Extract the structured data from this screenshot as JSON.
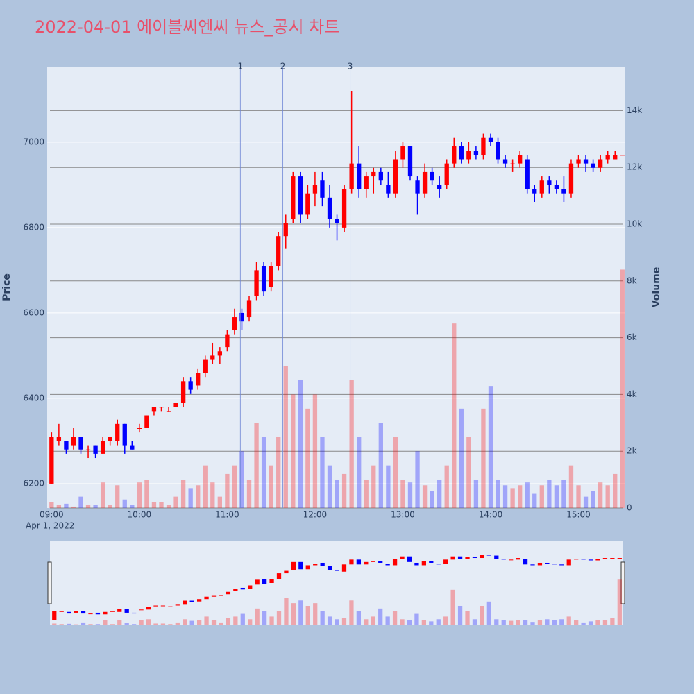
{
  "chart_data": {
    "type": "candlestick",
    "title": "2022-04-01 에이블씨엔씨 뉴스_공시 차트",
    "x_date_label": "Apr 1, 2022",
    "y_title": "Price",
    "y2_title": "Volume",
    "x": [
      "09:00",
      "09:05",
      "09:10",
      "09:15",
      "09:20",
      "09:25",
      "09:30",
      "09:35",
      "09:40",
      "09:45",
      "09:50",
      "09:55",
      "10:00",
      "10:05",
      "10:10",
      "10:15",
      "10:20",
      "10:25",
      "10:30",
      "10:35",
      "10:40",
      "10:45",
      "10:50",
      "10:55",
      "11:00",
      "11:05",
      "11:10",
      "11:15",
      "11:20",
      "11:25",
      "11:30",
      "11:35",
      "11:40",
      "11:45",
      "11:50",
      "11:55",
      "12:00",
      "12:05",
      "12:10",
      "12:15",
      "12:20",
      "12:25",
      "12:30",
      "12:35",
      "12:40",
      "12:45",
      "12:50",
      "12:55",
      "13:00",
      "13:05",
      "13:10",
      "13:15",
      "13:20",
      "13:25",
      "13:30",
      "13:35",
      "13:40",
      "13:45",
      "13:50",
      "13:55",
      "14:00",
      "14:05",
      "14:10",
      "14:15",
      "14:20",
      "14:25",
      "14:30",
      "14:35",
      "14:40",
      "14:45",
      "14:50",
      "14:55",
      "15:00",
      "15:05",
      "15:10",
      "15:15",
      "15:20",
      "15:25",
      "15:30"
    ],
    "open": [
      6200,
      6300,
      6300,
      6290,
      6310,
      6280,
      6290,
      6270,
      6300,
      6300,
      6340,
      6290,
      6330,
      6330,
      6370,
      6380,
      6370,
      6380,
      6390,
      6440,
      6430,
      6460,
      6490,
      6500,
      6520,
      6560,
      6600,
      6590,
      6640,
      6710,
      6660,
      6710,
      6780,
      6820,
      6920,
      6830,
      6880,
      6910,
      6870,
      6820,
      6800,
      6890,
      6950,
      6890,
      6920,
      6930,
      6900,
      6880,
      6960,
      6990,
      6910,
      6880,
      6930,
      6900,
      6900,
      6950,
      6990,
      6960,
      6980,
      6970,
      7010,
      7000,
      6960,
      6950,
      6950,
      6960,
      6890,
      6880,
      6910,
      6900,
      6890,
      6880,
      6950,
      6960,
      6950,
      6940,
      6960,
      6960,
      6970
    ],
    "high": [
      6320,
      6340,
      6300,
      6330,
      6310,
      6290,
      6290,
      6310,
      6310,
      6350,
      6340,
      6300,
      6340,
      6360,
      6380,
      6380,
      6380,
      6390,
      6450,
      6450,
      6470,
      6500,
      6530,
      6520,
      6560,
      6610,
      6610,
      6640,
      6720,
      6720,
      6720,
      6790,
      6830,
      6930,
      6930,
      6900,
      6930,
      6930,
      6900,
      6830,
      6900,
      7120,
      6990,
      6930,
      6940,
      6940,
      6930,
      6980,
      7000,
      6990,
      6920,
      6950,
      6940,
      6920,
      6960,
      7010,
      7000,
      7000,
      6990,
      7020,
      7020,
      7010,
      6970,
      6960,
      6980,
      6970,
      6900,
      6920,
      6920,
      6910,
      6920,
      6960,
      6970,
      6970,
      6960,
      6970,
      6980,
      6980,
      6970
    ],
    "low": [
      6200,
      6290,
      6270,
      6280,
      6270,
      6260,
      6260,
      6270,
      6290,
      6290,
      6270,
      6280,
      6320,
      6330,
      6360,
      6370,
      6370,
      6380,
      6380,
      6410,
      6420,
      6450,
      6480,
      6480,
      6510,
      6550,
      6560,
      6580,
      6630,
      6640,
      6650,
      6700,
      6750,
      6810,
      6810,
      6820,
      6850,
      6850,
      6800,
      6770,
      6790,
      6880,
      6870,
      6870,
      6880,
      6900,
      6870,
      6870,
      6940,
      6910,
      6830,
      6870,
      6900,
      6870,
      6890,
      6940,
      6950,
      6950,
      6960,
      6960,
      6990,
      6950,
      6940,
      6930,
      6940,
      6880,
      6860,
      6870,
      6880,
      6880,
      6860,
      6870,
      6940,
      6930,
      6930,
      6930,
      6950,
      6960,
      6970
    ],
    "close": [
      6310,
      6310,
      6280,
      6310,
      6280,
      6280,
      6270,
      6300,
      6310,
      6340,
      6290,
      6280,
      6330,
      6360,
      6380,
      6380,
      6370,
      6390,
      6440,
      6420,
      6460,
      6490,
      6500,
      6510,
      6550,
      6590,
      6580,
      6630,
      6700,
      6650,
      6710,
      6780,
      6810,
      6920,
      6830,
      6880,
      6900,
      6870,
      6820,
      6810,
      6890,
      6950,
      6890,
      6920,
      6930,
      6910,
      6880,
      6960,
      6990,
      6920,
      6880,
      6930,
      6910,
      6890,
      6950,
      6990,
      6960,
      6980,
      6970,
      7010,
      7000,
      6960,
      6950,
      6950,
      6970,
      6890,
      6880,
      6910,
      6900,
      6890,
      6880,
      6950,
      6960,
      6950,
      6940,
      6960,
      6970,
      6970,
      6970
    ],
    "volume": [
      200,
      100,
      150,
      50,
      400,
      100,
      100,
      900,
      100,
      800,
      300,
      100,
      900,
      1000,
      200,
      200,
      100,
      400,
      1000,
      700,
      800,
      1500,
      900,
      400,
      1200,
      1500,
      2000,
      1000,
      3000,
      2500,
      1500,
      2500,
      5000,
      4000,
      4500,
      3500,
      4000,
      2500,
      1500,
      1000,
      1200,
      4500,
      2500,
      1000,
      1500,
      3000,
      1500,
      2500,
      1000,
      900,
      2000,
      800,
      600,
      1000,
      1500,
      6500,
      3500,
      2500,
      1000,
      3500,
      4300,
      1000,
      800,
      700,
      800,
      900,
      500,
      800,
      1000,
      800,
      1000,
      1500,
      800,
      400,
      600,
      900,
      800,
      1200,
      8400
    ],
    "increasing_color": "#ff0000",
    "decreasing_color": "#0000ff",
    "annotations": [
      {
        "x": "11:09",
        "text": "1"
      },
      {
        "x": "11:38",
        "text": "2"
      },
      {
        "x": "12:24",
        "text": "3"
      }
    ],
    "xlim": [
      "08:57",
      "15:32"
    ],
    "xticks": [
      "09:00",
      "10:00",
      "11:00",
      "12:00",
      "13:00",
      "14:00",
      "15:00"
    ],
    "ylim": [
      6143,
      7177
    ],
    "yticks": [
      6200,
      6400,
      6600,
      6800,
      7000
    ],
    "y2lim": [
      0,
      15550
    ],
    "y2ticks": [
      0,
      {
        "value": 2000,
        "label": "2k"
      },
      {
        "value": 4000,
        "label": "4k"
      },
      {
        "value": 6000,
        "label": "6k"
      },
      {
        "value": 8000,
        "label": "8k"
      },
      {
        "value": 10000,
        "label": "10k"
      },
      {
        "value": 12000,
        "label": "12k"
      },
      {
        "value": 14000,
        "label": "14k"
      }
    ],
    "grid": true,
    "rangeslider": true
  }
}
